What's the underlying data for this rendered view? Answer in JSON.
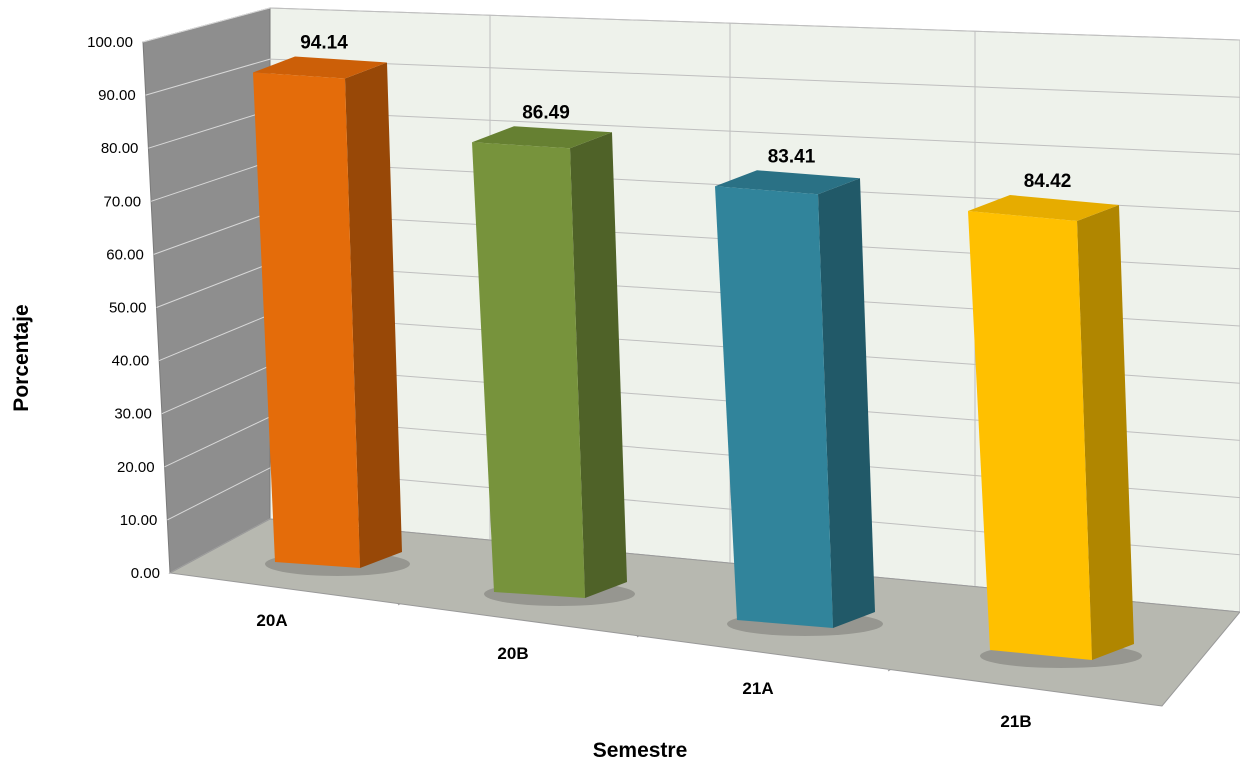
{
  "chart_data": {
    "type": "bar",
    "title": "",
    "xlabel": "Semestre",
    "ylabel": "Porcentaje",
    "ylim": [
      0,
      100
    ],
    "yticks": [
      "0.00",
      "10.00",
      "20.00",
      "30.00",
      "40.00",
      "50.00",
      "60.00",
      "70.00",
      "80.00",
      "90.00",
      "100.00"
    ],
    "categories": [
      "20A",
      "20B",
      "21A",
      "21B"
    ],
    "values": [
      94.14,
      86.49,
      83.41,
      84.42
    ],
    "data_labels": [
      "94.14",
      "86.49",
      "83.41",
      "84.42"
    ],
    "colors": [
      {
        "front": "#E46C0A",
        "side": "#984807",
        "top": "#CC5F08"
      },
      {
        "front": "#77933C",
        "side": "#4F6228",
        "top": "#668032"
      },
      {
        "front": "#31849B",
        "side": "#215968",
        "top": "#2A7185"
      },
      {
        "front": "#FFC000",
        "side": "#B08600",
        "top": "#E6AC00"
      }
    ],
    "grid": true,
    "style": "3d-column",
    "legend": "none"
  }
}
